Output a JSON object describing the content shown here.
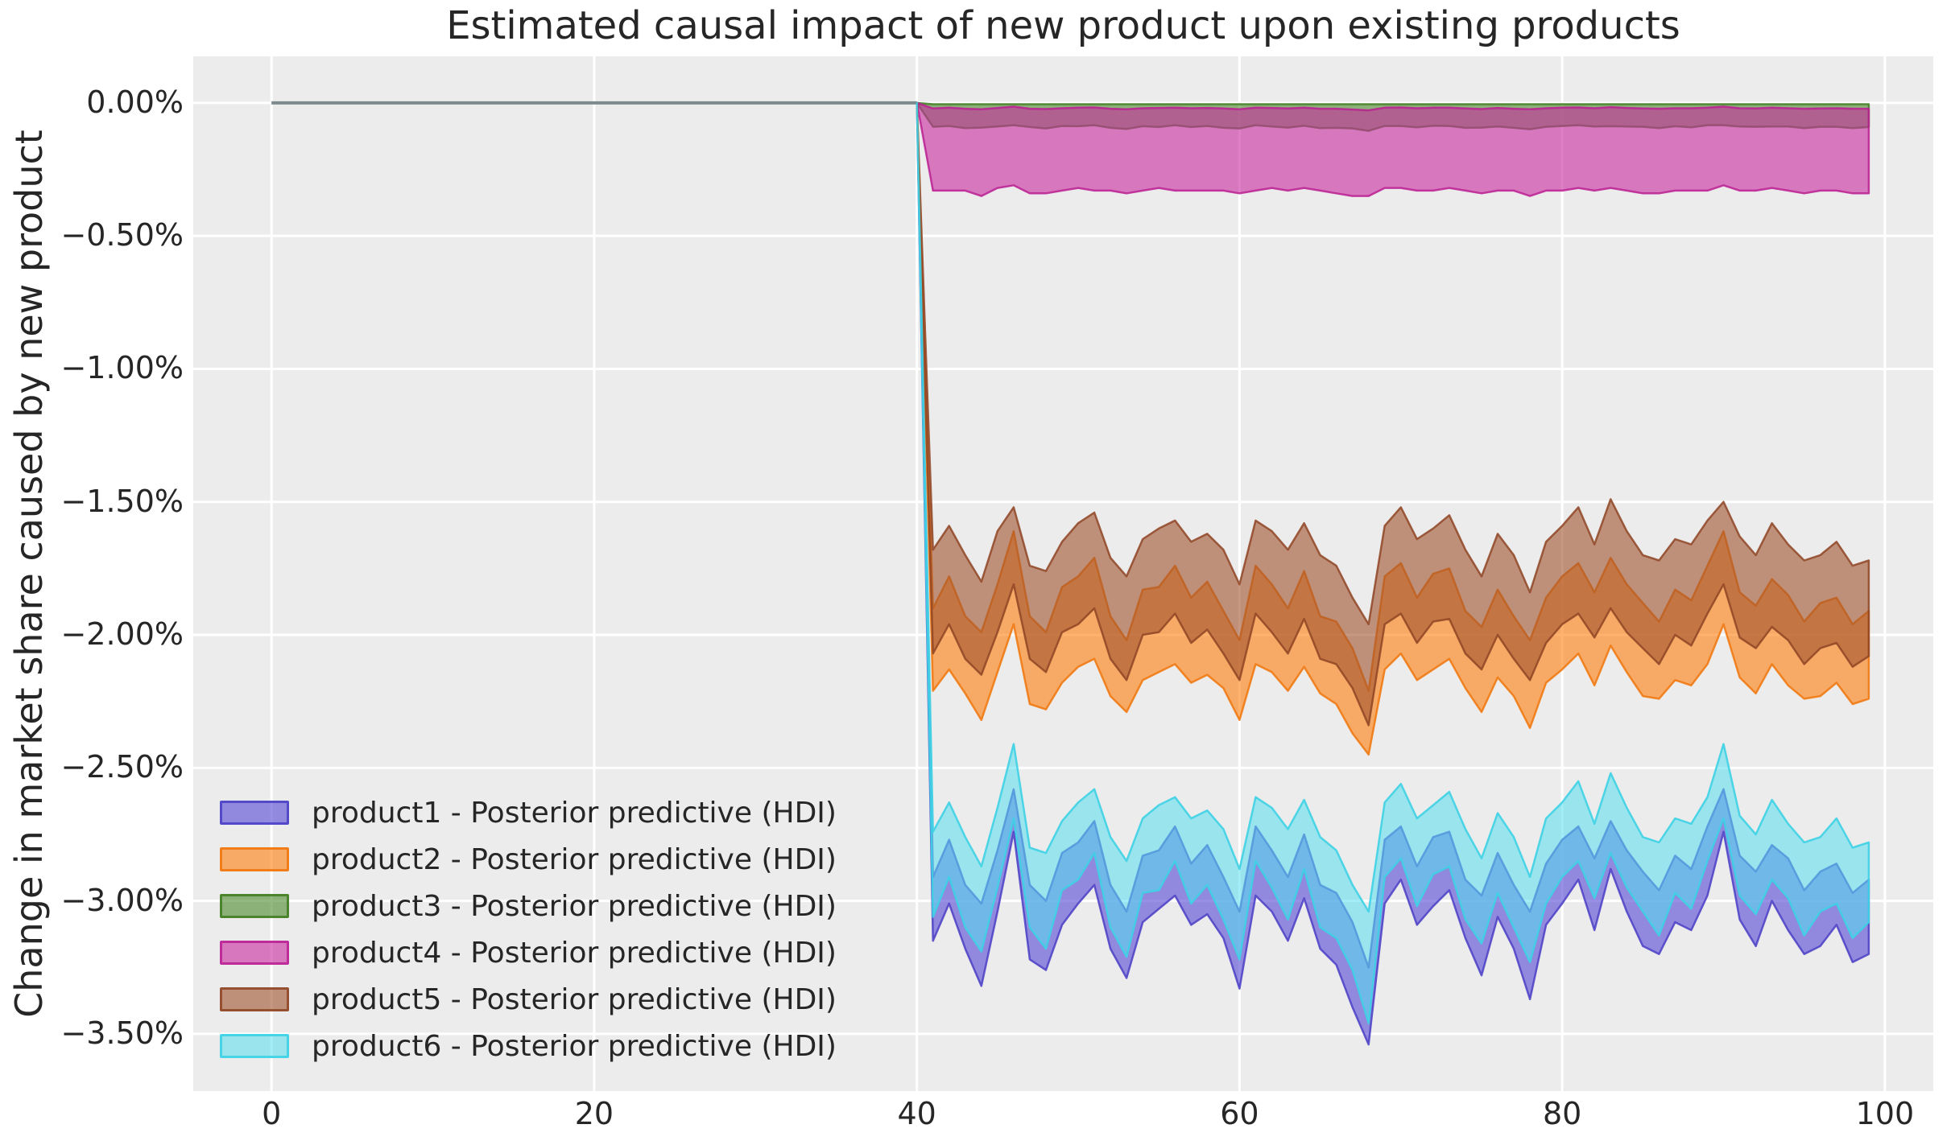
{
  "chart_data": {
    "type": "area",
    "title": "Estimated causal impact of new product upon existing products",
    "xlabel": "",
    "ylabel": "Change in market share caused by new product",
    "xlim": [
      -4.85,
      103.0
    ],
    "ylim": [
      -3.715,
      0.175
    ],
    "grid": true,
    "legend_position": "lower left",
    "background_color": "#ececec",
    "grid_color": "#ffffff",
    "text_color": "#262626",
    "x_ticks": [
      {
        "value": 0,
        "label": "0"
      },
      {
        "value": 20,
        "label": "20"
      },
      {
        "value": 40,
        "label": "40"
      },
      {
        "value": 60,
        "label": "60"
      },
      {
        "value": 80,
        "label": "80"
      },
      {
        "value": 100,
        "label": "100"
      }
    ],
    "y_ticks": [
      {
        "value": 0.0,
        "label": "0.00%"
      },
      {
        "value": -0.5,
        "label": "−0.50%"
      },
      {
        "value": -1.0,
        "label": "−1.00%"
      },
      {
        "value": -1.5,
        "label": "−1.50%"
      },
      {
        "value": -2.0,
        "label": "−2.00%"
      },
      {
        "value": -2.5,
        "label": "−2.50%"
      },
      {
        "value": -3.0,
        "label": "−3.00%"
      },
      {
        "value": -3.5,
        "label": "−3.50%"
      }
    ],
    "pre_period": {
      "x": [
        0,
        40
      ],
      "y": [
        0,
        0
      ],
      "color": "#7c8c8e",
      "width": 4
    },
    "intervention_x": 40,
    "post_x_start": 41,
    "post_x_step": 1,
    "series": [
      {
        "name": "product1",
        "legend_label": "product1 - Posterior predictive (HDI)",
        "color": "#584cd4",
        "edge_color": "#4a3ec6",
        "fill_alpha": 0.62,
        "edge_alpha": 0.85,
        "hi": [
          -2.91,
          -2.77,
          -2.94,
          -3.01,
          -2.81,
          -2.58,
          -2.94,
          -3.0,
          -2.82,
          -2.78,
          -2.7,
          -2.94,
          -3.04,
          -2.83,
          -2.81,
          -2.72,
          -2.86,
          -2.79,
          -2.91,
          -3.04,
          -2.72,
          -2.81,
          -2.91,
          -2.75,
          -2.94,
          -2.97,
          -3.08,
          -3.25,
          -2.77,
          -2.72,
          -2.87,
          -2.76,
          -2.74,
          -2.92,
          -2.98,
          -2.82,
          -2.94,
          -3.04,
          -2.86,
          -2.77,
          -2.72,
          -2.84,
          -2.7,
          -2.81,
          -2.89,
          -2.96,
          -2.83,
          -2.88,
          -2.72,
          -2.58,
          -2.83,
          -2.89,
          -2.79,
          -2.84,
          -2.96,
          -2.89,
          -2.86,
          -2.97,
          -2.92
        ],
        "lo": [
          -3.15,
          -3.01,
          -3.18,
          -3.32,
          -3.04,
          -2.74,
          -3.22,
          -3.26,
          -3.09,
          -3.01,
          -2.94,
          -3.18,
          -3.29,
          -3.08,
          -3.03,
          -2.98,
          -3.09,
          -3.05,
          -3.14,
          -3.33,
          -2.98,
          -3.04,
          -3.15,
          -2.99,
          -3.18,
          -3.24,
          -3.4,
          -3.54,
          -3.01,
          -2.92,
          -3.09,
          -3.02,
          -2.96,
          -3.14,
          -3.28,
          -3.06,
          -3.18,
          -3.37,
          -3.09,
          -3.01,
          -2.92,
          -3.11,
          -2.88,
          -3.04,
          -3.17,
          -3.2,
          -3.08,
          -3.11,
          -2.98,
          -2.74,
          -3.07,
          -3.17,
          -3.0,
          -3.11,
          -3.2,
          -3.17,
          -3.09,
          -3.23,
          -3.2
        ]
      },
      {
        "name": "product2",
        "legend_label": "product2 - Posterior predictive (HDI)",
        "color": "#ff7f0e",
        "edge_color": "#f0760a",
        "fill_alpha": 0.6,
        "edge_alpha": 0.85,
        "hi": [
          -1.9,
          -1.78,
          -1.93,
          -1.99,
          -1.81,
          -1.61,
          -1.93,
          -1.99,
          -1.82,
          -1.78,
          -1.71,
          -1.93,
          -2.02,
          -1.83,
          -1.82,
          -1.74,
          -1.86,
          -1.8,
          -1.91,
          -2.02,
          -1.74,
          -1.81,
          -1.9,
          -1.76,
          -1.93,
          -1.95,
          -2.05,
          -2.21,
          -1.78,
          -1.73,
          -1.86,
          -1.77,
          -1.75,
          -1.91,
          -1.97,
          -1.83,
          -1.93,
          -2.02,
          -1.86,
          -1.78,
          -1.73,
          -1.84,
          -1.71,
          -1.81,
          -1.88,
          -1.95,
          -1.83,
          -1.87,
          -1.74,
          -1.61,
          -1.84,
          -1.89,
          -1.79,
          -1.85,
          -1.95,
          -1.88,
          -1.86,
          -1.96,
          -1.91
        ],
        "lo": [
          -2.21,
          -2.13,
          -2.22,
          -2.32,
          -2.14,
          -1.96,
          -2.26,
          -2.28,
          -2.18,
          -2.12,
          -2.09,
          -2.23,
          -2.29,
          -2.17,
          -2.14,
          -2.11,
          -2.18,
          -2.15,
          -2.2,
          -2.32,
          -2.11,
          -2.14,
          -2.21,
          -2.12,
          -2.22,
          -2.26,
          -2.37,
          -2.45,
          -2.13,
          -2.07,
          -2.17,
          -2.13,
          -2.09,
          -2.2,
          -2.29,
          -2.16,
          -2.23,
          -2.35,
          -2.18,
          -2.13,
          -2.07,
          -2.19,
          -2.04,
          -2.14,
          -2.23,
          -2.24,
          -2.17,
          -2.19,
          -2.11,
          -1.96,
          -2.16,
          -2.22,
          -2.11,
          -2.19,
          -2.24,
          -2.23,
          -2.18,
          -2.26,
          -2.24
        ]
      },
      {
        "name": "product3",
        "legend_label": "product3 - Posterior predictive (HDI)",
        "color": "#4c8b2b",
        "edge_color": "#407c21",
        "fill_alpha": 0.6,
        "edge_alpha": 0.85,
        "hi": [
          -0.005,
          -0.005,
          -0.005,
          -0.005,
          -0.005,
          -0.005,
          -0.005,
          -0.005,
          -0.005,
          -0.005,
          -0.005,
          -0.005,
          -0.005,
          -0.005,
          -0.005,
          -0.005,
          -0.005,
          -0.005,
          -0.005,
          -0.005,
          -0.005,
          -0.005,
          -0.005,
          -0.005,
          -0.005,
          -0.005,
          -0.005,
          -0.005,
          -0.005,
          -0.005,
          -0.005,
          -0.005,
          -0.005,
          -0.005,
          -0.005,
          -0.005,
          -0.005,
          -0.005,
          -0.005,
          -0.005,
          -0.005,
          -0.005,
          -0.005,
          -0.005,
          -0.005,
          -0.005,
          -0.005,
          -0.005,
          -0.005,
          -0.005,
          -0.005,
          -0.005,
          -0.005,
          -0.005,
          -0.005,
          -0.005,
          -0.005,
          -0.005,
          -0.005
        ],
        "lo": [
          -0.09,
          -0.087,
          -0.095,
          -0.093,
          -0.089,
          -0.084,
          -0.091,
          -0.096,
          -0.087,
          -0.088,
          -0.084,
          -0.094,
          -0.098,
          -0.088,
          -0.091,
          -0.084,
          -0.091,
          -0.087,
          -0.094,
          -0.096,
          -0.084,
          -0.089,
          -0.093,
          -0.086,
          -0.095,
          -0.094,
          -0.096,
          -0.105,
          -0.087,
          -0.087,
          -0.092,
          -0.086,
          -0.087,
          -0.094,
          -0.093,
          -0.089,
          -0.094,
          -0.099,
          -0.09,
          -0.087,
          -0.084,
          -0.089,
          -0.088,
          -0.089,
          -0.09,
          -0.095,
          -0.088,
          -0.092,
          -0.084,
          -0.084,
          -0.089,
          -0.09,
          -0.089,
          -0.089,
          -0.095,
          -0.09,
          -0.09,
          -0.095,
          -0.091
        ]
      },
      {
        "name": "product4",
        "legend_label": "product4 - Posterior predictive (HDI)",
        "color": "#c92ca0",
        "edge_color": "#bb1e92",
        "fill_alpha": 0.6,
        "edge_alpha": 0.85,
        "hi": [
          -0.021,
          -0.018,
          -0.022,
          -0.024,
          -0.019,
          -0.014,
          -0.022,
          -0.023,
          -0.02,
          -0.018,
          -0.017,
          -0.022,
          -0.024,
          -0.02,
          -0.019,
          -0.018,
          -0.02,
          -0.019,
          -0.021,
          -0.024,
          -0.018,
          -0.019,
          -0.021,
          -0.018,
          -0.022,
          -0.022,
          -0.025,
          -0.028,
          -0.018,
          -0.017,
          -0.02,
          -0.018,
          -0.018,
          -0.021,
          -0.023,
          -0.019,
          -0.022,
          -0.024,
          -0.02,
          -0.018,
          -0.017,
          -0.02,
          -0.016,
          -0.019,
          -0.021,
          -0.022,
          -0.02,
          -0.02,
          -0.018,
          -0.014,
          -0.02,
          -0.021,
          -0.018,
          -0.02,
          -0.022,
          -0.021,
          -0.02,
          -0.022,
          -0.022
        ],
        "lo": [
          -0.33,
          -0.33,
          -0.33,
          -0.35,
          -0.32,
          -0.31,
          -0.34,
          -0.34,
          -0.33,
          -0.32,
          -0.33,
          -0.33,
          -0.34,
          -0.33,
          -0.32,
          -0.33,
          -0.33,
          -0.33,
          -0.33,
          -0.34,
          -0.33,
          -0.32,
          -0.33,
          -0.32,
          -0.33,
          -0.34,
          -0.35,
          -0.35,
          -0.32,
          -0.32,
          -0.33,
          -0.33,
          -0.32,
          -0.33,
          -0.34,
          -0.33,
          -0.33,
          -0.35,
          -0.33,
          -0.33,
          -0.32,
          -0.33,
          -0.32,
          -0.33,
          -0.34,
          -0.34,
          -0.33,
          -0.33,
          -0.33,
          -0.31,
          -0.33,
          -0.33,
          -0.32,
          -0.33,
          -0.34,
          -0.33,
          -0.33,
          -0.34,
          -0.34
        ]
      },
      {
        "name": "product5",
        "legend_label": "product5 - Posterior predictive (HDI)",
        "color": "#a0522d",
        "edge_color": "#8f4524",
        "fill_alpha": 0.6,
        "edge_alpha": 0.85,
        "hi": [
          -1.68,
          -1.59,
          -1.7,
          -1.8,
          -1.61,
          -1.52,
          -1.74,
          -1.76,
          -1.65,
          -1.58,
          -1.54,
          -1.71,
          -1.78,
          -1.64,
          -1.6,
          -1.57,
          -1.65,
          -1.62,
          -1.68,
          -1.81,
          -1.57,
          -1.61,
          -1.68,
          -1.58,
          -1.7,
          -1.74,
          -1.86,
          -1.96,
          -1.59,
          -1.52,
          -1.64,
          -1.6,
          -1.55,
          -1.68,
          -1.78,
          -1.62,
          -1.7,
          -1.84,
          -1.65,
          -1.59,
          -1.52,
          -1.66,
          -1.49,
          -1.61,
          -1.7,
          -1.72,
          -1.64,
          -1.66,
          -1.57,
          -1.5,
          -1.63,
          -1.7,
          -1.58,
          -1.66,
          -1.72,
          -1.7,
          -1.65,
          -1.74,
          -1.72
        ],
        "lo": [
          -2.07,
          -1.96,
          -2.09,
          -2.15,
          -1.99,
          -1.81,
          -2.09,
          -2.14,
          -1.99,
          -1.96,
          -1.9,
          -2.09,
          -2.17,
          -2.0,
          -1.99,
          -1.92,
          -2.03,
          -1.98,
          -2.07,
          -2.17,
          -1.92,
          -1.99,
          -2.07,
          -1.94,
          -2.09,
          -2.11,
          -2.2,
          -2.34,
          -1.96,
          -1.92,
          -2.03,
          -1.95,
          -1.94,
          -2.07,
          -2.13,
          -2.0,
          -2.09,
          -2.17,
          -2.03,
          -1.96,
          -1.92,
          -2.01,
          -1.9,
          -1.99,
          -2.05,
          -2.11,
          -2.0,
          -2.04,
          -1.92,
          -1.81,
          -2.01,
          -2.05,
          -1.97,
          -2.02,
          -2.11,
          -2.05,
          -2.03,
          -2.12,
          -2.08
        ]
      },
      {
        "name": "product6",
        "legend_label": "product6 - Posterior predictive (HDI)",
        "color": "#55dfee",
        "edge_color": "#3ed2e4",
        "fill_alpha": 0.55,
        "edge_alpha": 0.9,
        "hi": [
          -2.74,
          -2.63,
          -2.76,
          -2.87,
          -2.65,
          -2.41,
          -2.8,
          -2.82,
          -2.7,
          -2.63,
          -2.58,
          -2.76,
          -2.85,
          -2.69,
          -2.64,
          -2.61,
          -2.69,
          -2.66,
          -2.73,
          -2.88,
          -2.61,
          -2.65,
          -2.73,
          -2.62,
          -2.76,
          -2.81,
          -2.94,
          -3.04,
          -2.63,
          -2.56,
          -2.69,
          -2.64,
          -2.59,
          -2.73,
          -2.84,
          -2.67,
          -2.76,
          -2.91,
          -2.69,
          -2.63,
          -2.55,
          -2.71,
          -2.52,
          -2.65,
          -2.76,
          -2.78,
          -2.69,
          -2.71,
          -2.61,
          -2.41,
          -2.68,
          -2.75,
          -2.62,
          -2.71,
          -2.78,
          -2.76,
          -2.69,
          -2.8,
          -2.78
        ],
        "lo": [
          -3.06,
          -2.91,
          -3.1,
          -3.19,
          -2.95,
          -2.69,
          -3.1,
          -3.18,
          -2.96,
          -2.92,
          -2.82,
          -3.1,
          -3.21,
          -2.97,
          -2.96,
          -2.85,
          -3.01,
          -2.94,
          -3.07,
          -3.22,
          -2.85,
          -2.95,
          -3.07,
          -2.88,
          -3.1,
          -3.14,
          -3.26,
          -3.46,
          -2.91,
          -2.84,
          -3.02,
          -2.9,
          -2.87,
          -3.07,
          -3.16,
          -2.97,
          -3.1,
          -3.23,
          -3.01,
          -2.91,
          -2.85,
          -2.99,
          -2.82,
          -2.95,
          -3.04,
          -3.13,
          -2.97,
          -3.03,
          -2.85,
          -2.69,
          -2.98,
          -3.05,
          -2.92,
          -2.99,
          -3.13,
          -3.04,
          -3.01,
          -3.14,
          -3.08
        ]
      }
    ]
  }
}
